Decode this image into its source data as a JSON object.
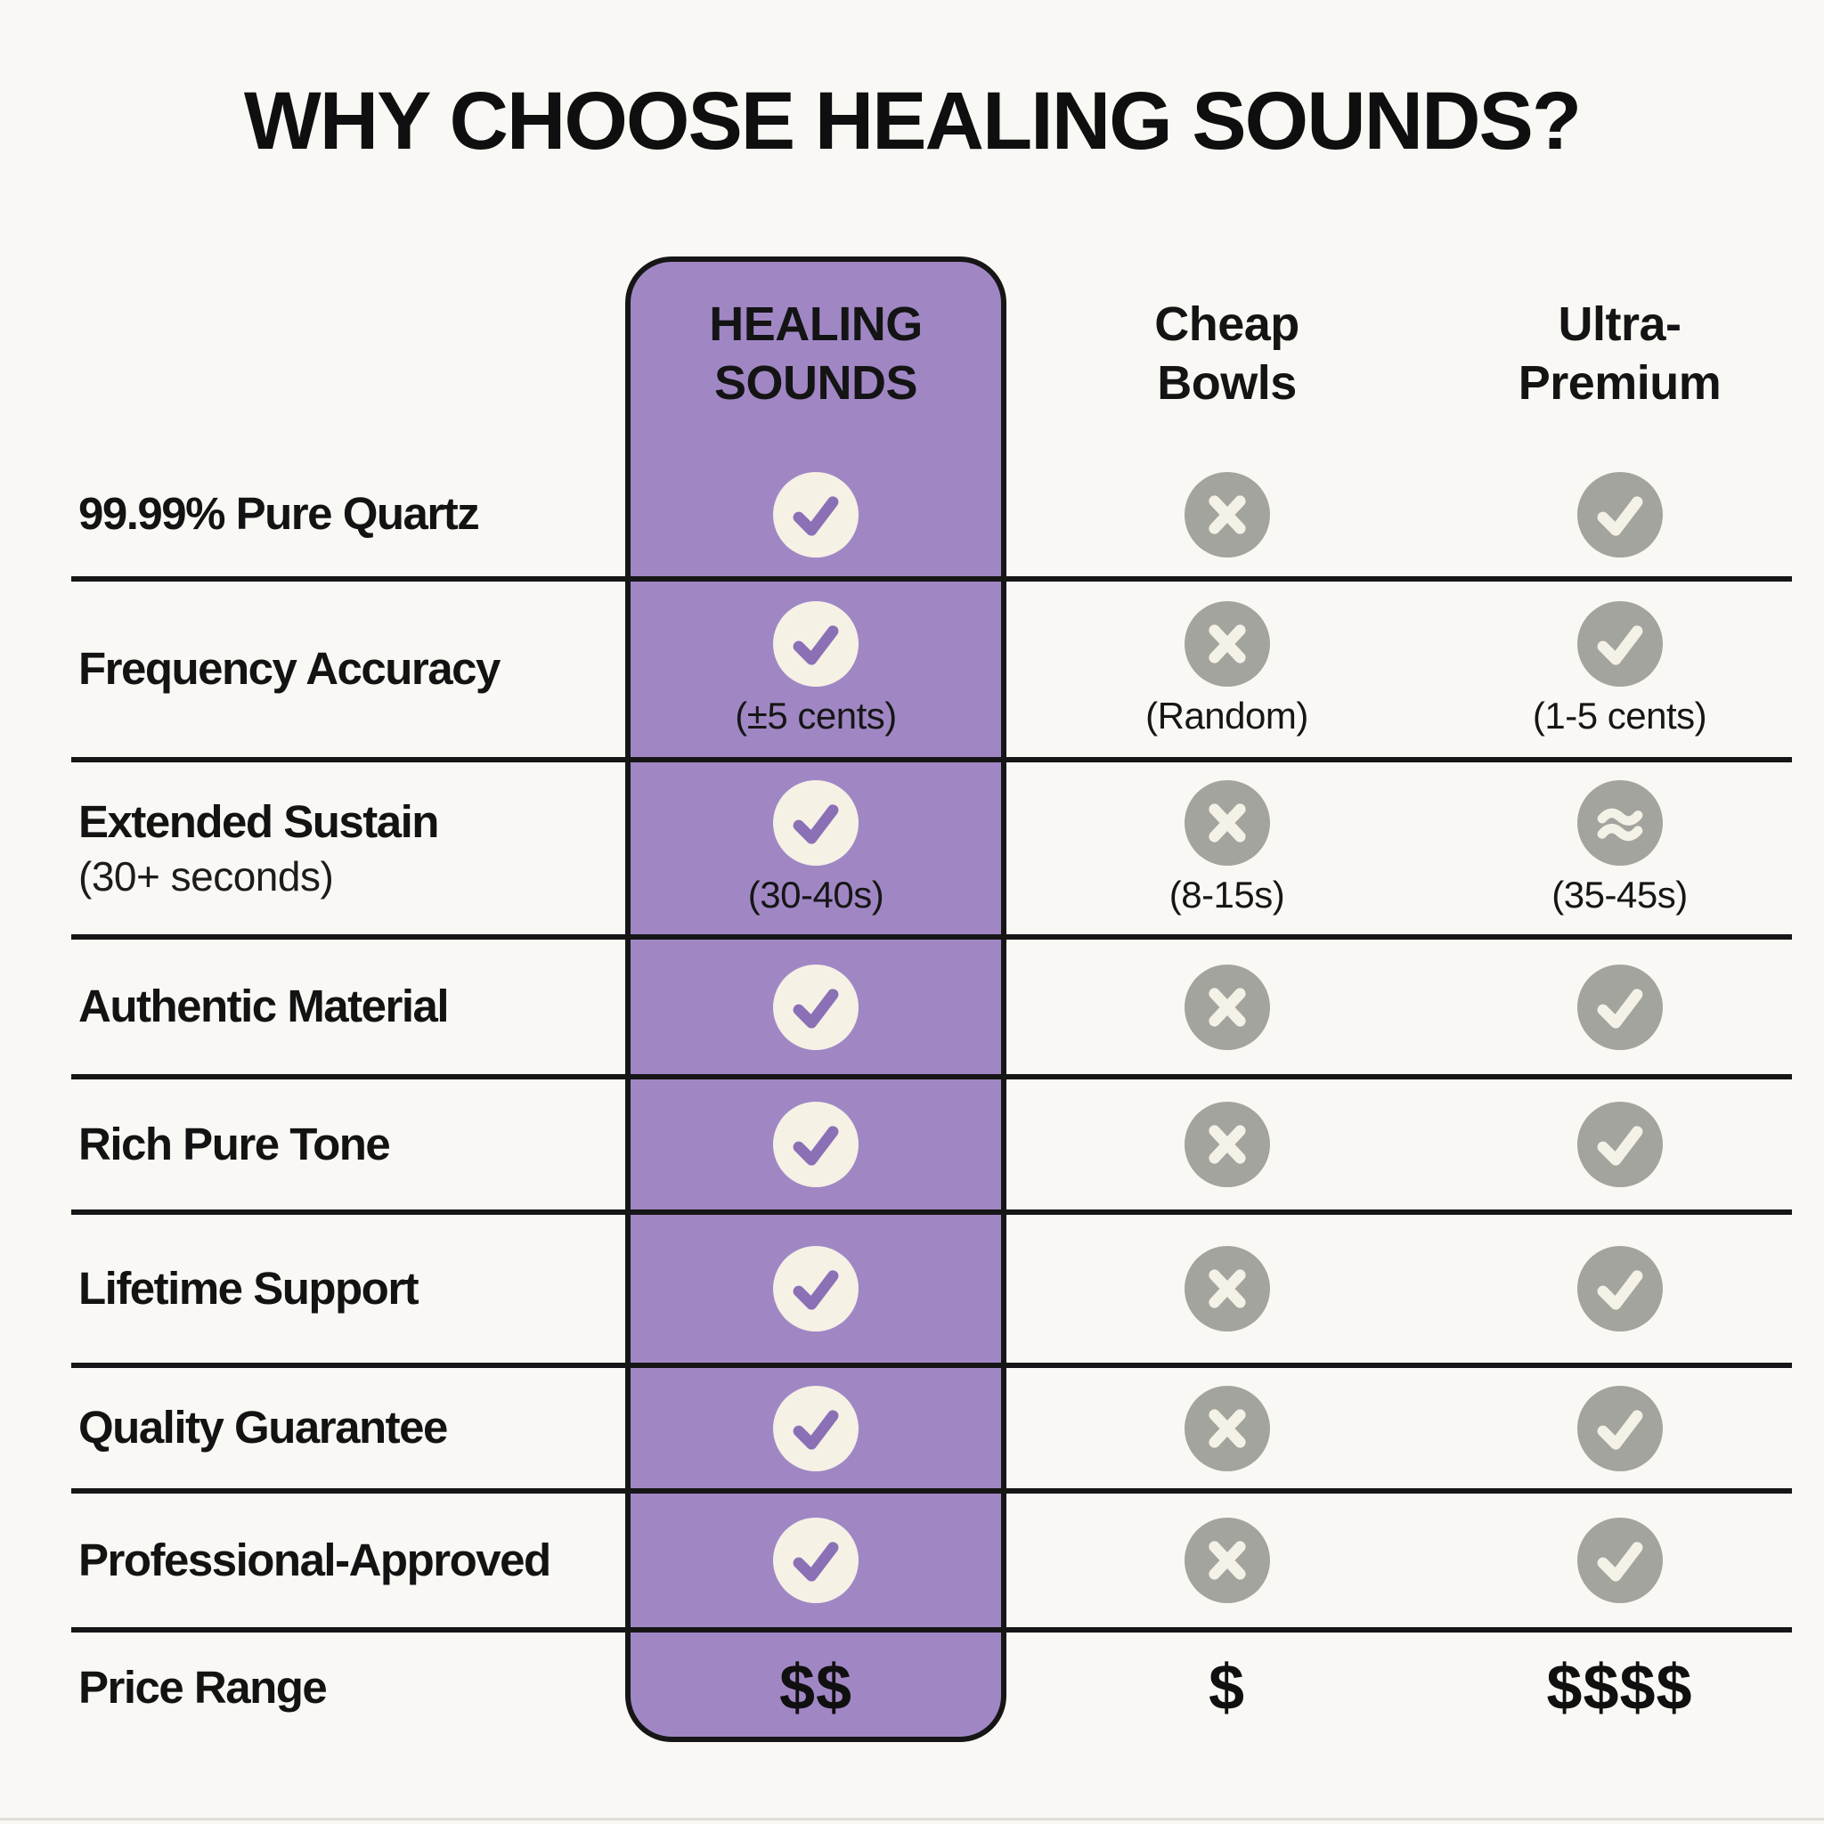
{
  "title": "WHY CHOOSE HEALING SOUNDS?",
  "colors": {
    "background": "#faf8f4",
    "accent_purple": "#a087c4",
    "circle_cream": "#f5f1e5",
    "icon_gray": "#a3a49e",
    "line_black": "#161616",
    "text_black": "#131313"
  },
  "chart_data": {
    "type": "table",
    "title": "WHY CHOOSE HEALING SOUNDS?",
    "columns": {
      "healing": "HEALING SOUNDS",
      "cheap": "Cheap Bowls",
      "ultra": "Ultra-Premium"
    },
    "rows": [
      {
        "label": "99.99% Pure Quartz",
        "sublabel": "",
        "healing": {
          "icon": "check-icon",
          "note": ""
        },
        "cheap": {
          "icon": "x-icon",
          "note": ""
        },
        "ultra": {
          "icon": "check-icon",
          "note": ""
        }
      },
      {
        "label": "Frequency Accuracy",
        "sublabel": "",
        "healing": {
          "icon": "check-icon",
          "note": "(±5 cents)"
        },
        "cheap": {
          "icon": "x-icon",
          "note": "(Random)"
        },
        "ultra": {
          "icon": "check-icon",
          "note": "(1-5 cents)"
        }
      },
      {
        "label": "Extended Sustain",
        "sublabel": "(30+ seconds)",
        "healing": {
          "icon": "check-icon",
          "note": "(30-40s)"
        },
        "cheap": {
          "icon": "x-icon",
          "note": "(8-15s)"
        },
        "ultra": {
          "icon": "approx-icon",
          "note": "(35-45s)"
        }
      },
      {
        "label": "Authentic Material",
        "sublabel": "",
        "healing": {
          "icon": "check-icon",
          "note": ""
        },
        "cheap": {
          "icon": "x-icon",
          "note": ""
        },
        "ultra": {
          "icon": "check-icon",
          "note": ""
        }
      },
      {
        "label": "Rich Pure Tone",
        "sublabel": "",
        "healing": {
          "icon": "check-icon",
          "note": ""
        },
        "cheap": {
          "icon": "x-icon",
          "note": ""
        },
        "ultra": {
          "icon": "check-icon",
          "note": ""
        }
      },
      {
        "label": "Lifetime Support",
        "sublabel": "",
        "healing": {
          "icon": "check-icon",
          "note": ""
        },
        "cheap": {
          "icon": "x-icon",
          "note": ""
        },
        "ultra": {
          "icon": "check-icon",
          "note": ""
        }
      },
      {
        "label": "Quality Guarantee",
        "sublabel": "",
        "healing": {
          "icon": "check-icon",
          "note": ""
        },
        "cheap": {
          "icon": "x-icon",
          "note": ""
        },
        "ultra": {
          "icon": "check-icon",
          "note": ""
        }
      },
      {
        "label": "Professional-Approved",
        "sublabel": "",
        "healing": {
          "icon": "check-icon",
          "note": ""
        },
        "cheap": {
          "icon": "x-icon",
          "note": ""
        },
        "ultra": {
          "icon": "check-icon",
          "note": ""
        }
      }
    ],
    "price": {
      "label": "Price Range",
      "healing": "$$",
      "cheap": "$",
      "ultra": "$$$$"
    }
  }
}
